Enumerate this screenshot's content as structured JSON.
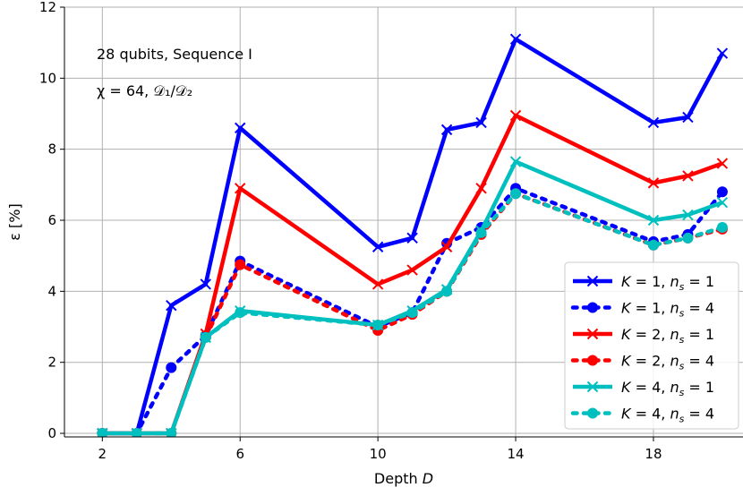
{
  "chart_data": {
    "type": "line",
    "xlabel_text": "Depth ",
    "xlabel_var": "D",
    "ylabel": "ε [%]",
    "xlim": [
      0.9,
      20.6
    ],
    "ylim": [
      -0.1,
      12
    ],
    "xticks": [
      2,
      6,
      10,
      14,
      18
    ],
    "yticks": [
      0,
      2,
      4,
      6,
      8,
      10,
      12
    ],
    "grid": true,
    "annotations": [
      "28 qubits, Sequence I",
      "χ = 64, 𝒟₁/𝒟₂"
    ],
    "legend_position": "bottom-right",
    "x": [
      2,
      3,
      4,
      5,
      6,
      10,
      11,
      12,
      13,
      14,
      18,
      19,
      20
    ],
    "series": [
      {
        "name": "K = 1, n_s = 1",
        "legend_K": "K = 1, ",
        "legend_n": "n",
        "legend_sub": "s",
        "legend_eq": " = 1",
        "color": "#0000ff",
        "style": "solid",
        "marker": "x",
        "values": [
          0,
          0,
          3.6,
          4.2,
          8.6,
          5.25,
          5.5,
          8.55,
          8.75,
          11.1,
          8.75,
          8.9,
          10.7
        ]
      },
      {
        "name": "K = 1, n_s = 4",
        "legend_K": "K = 1, ",
        "legend_n": "n",
        "legend_sub": "s",
        "legend_eq": " = 4",
        "color": "#0000ff",
        "style": "dotted",
        "marker": "o",
        "values": [
          0,
          0,
          1.85,
          2.75,
          4.85,
          3.0,
          3.4,
          5.35,
          5.8,
          6.9,
          5.4,
          5.6,
          6.8
        ]
      },
      {
        "name": "K = 2, n_s = 1",
        "legend_K": "K = 2, ",
        "legend_n": "n",
        "legend_sub": "s",
        "legend_eq": " = 1",
        "color": "#ff0000",
        "style": "solid",
        "marker": "x",
        "values": [
          0,
          0,
          0,
          2.8,
          6.9,
          4.2,
          4.6,
          5.25,
          6.9,
          8.95,
          7.05,
          7.25,
          7.6
        ]
      },
      {
        "name": "K = 2, n_s = 4",
        "legend_K": "K = 2, ",
        "legend_n": "n",
        "legend_sub": "s",
        "legend_eq": " = 4",
        "color": "#ff0000",
        "style": "dotted",
        "marker": "o",
        "values": [
          0,
          0,
          0,
          2.7,
          4.75,
          2.9,
          3.35,
          4.0,
          5.6,
          6.75,
          5.3,
          5.5,
          5.75
        ]
      },
      {
        "name": "K = 4, n_s = 1",
        "legend_K": "K = 4, ",
        "legend_n": "n",
        "legend_sub": "s",
        "legend_eq": " = 1",
        "color": "#00bfbf",
        "style": "solid",
        "marker": "x",
        "values": [
          0,
          0,
          0,
          2.7,
          3.45,
          3.05,
          3.45,
          4.05,
          5.7,
          7.65,
          6.0,
          6.15,
          6.5
        ]
      },
      {
        "name": "K = 4, n_s = 4",
        "legend_K": "K = 4, ",
        "legend_n": "n",
        "legend_sub": "s",
        "legend_eq": " = 4",
        "color": "#00bfbf",
        "style": "dotted",
        "marker": "o",
        "values": [
          0,
          0,
          0,
          2.7,
          3.4,
          3.05,
          3.4,
          4.0,
          5.65,
          6.75,
          5.3,
          5.5,
          5.8
        ]
      }
    ]
  }
}
